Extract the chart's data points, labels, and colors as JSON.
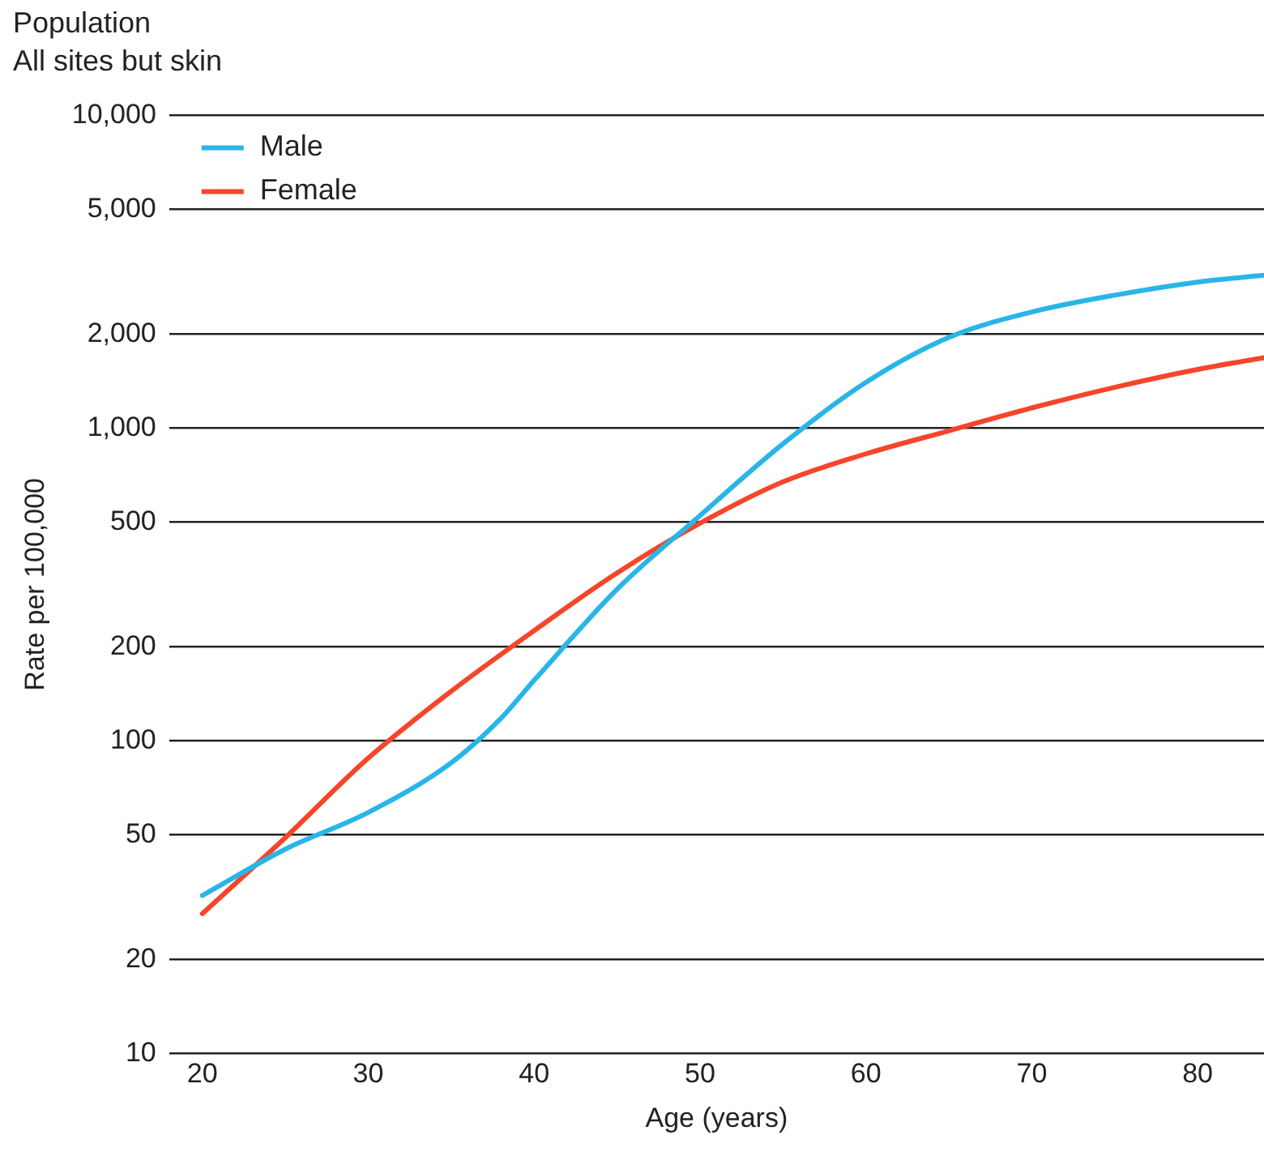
{
  "chart_data": {
    "type": "line",
    "title": "Population",
    "subtitle": "All sites but skin",
    "xlabel": "Age (years)",
    "ylabel": "Rate per 100,000",
    "log": "y",
    "grid": "y",
    "legend": "top left",
    "marker": "none",
    "line_style": "solid",
    "xlim": [
      18,
      84
    ],
    "xticks": [
      20,
      30,
      40,
      50,
      60,
      70,
      80
    ],
    "ylim": [
      10,
      10000
    ],
    "yticks": [
      10,
      20,
      50,
      100,
      200,
      500,
      {
        "value": 1000,
        "label": "1,000"
      },
      {
        "value": 2000,
        "label": "2,000"
      },
      {
        "value": 5000,
        "label": "5,000"
      },
      {
        "value": 10000,
        "label": "10,000"
      }
    ],
    "x": [
      20,
      25,
      30,
      35,
      38,
      40,
      45,
      50,
      55,
      60,
      65,
      70,
      75,
      80,
      84
    ],
    "series": [
      {
        "name": "Male",
        "color": "#29b5e8",
        "values": [
          32,
          45,
          59,
          85,
          118,
          156,
          305,
          525,
          890,
          1400,
          1950,
          2350,
          2660,
          2930,
          3080
        ]
      },
      {
        "name": "Female",
        "color": "#f5452a",
        "x": [
          20,
          25,
          30,
          35,
          40,
          45,
          50,
          55,
          60,
          65,
          70,
          75,
          80,
          84
        ],
        "values": [
          28,
          49,
          88,
          144,
          225,
          344,
          496,
          673,
          827,
          980,
          1160,
          1350,
          1540,
          1680
        ]
      }
    ]
  }
}
